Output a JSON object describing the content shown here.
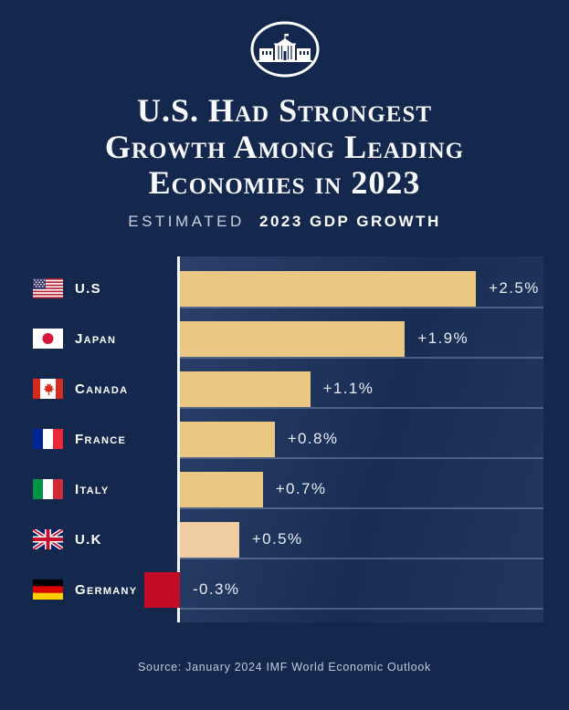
{
  "page": {
    "background": "#14284E"
  },
  "header": {
    "logo_icon": "white-house-logo-icon",
    "title_lines": [
      "U.S. Had Strongest",
      "Growth Among Leading",
      "Economies in 2023"
    ],
    "subtitle": {
      "light": "Estimated",
      "bold": "2023 GDP Growth"
    }
  },
  "chart_data": {
    "type": "bar",
    "orientation": "horizontal",
    "title": "U.S. Had Strongest Growth Among Leading Economies in 2023",
    "subtitle": "Estimated 2023 GDP Growth",
    "categories": [
      "U.S",
      "Japan",
      "Canada",
      "France",
      "Italy",
      "U.K",
      "Germany"
    ],
    "values": [
      2.5,
      1.9,
      1.1,
      0.8,
      0.7,
      0.5,
      -0.3
    ],
    "value_labels": [
      "+2.5%",
      "+1.9%",
      "+1.1%",
      "+0.8%",
      "+0.7%",
      "+0.5%",
      "-0.3%"
    ],
    "flag_icons": [
      "us-flag-icon",
      "japan-flag-icon",
      "canada-flag-icon",
      "france-flag-icon",
      "italy-flag-icon",
      "uk-flag-icon",
      "germany-flag-icon"
    ],
    "bar_colors": [
      "#EAC783",
      "#EAC783",
      "#EAC783",
      "#EAC783",
      "#EAC783",
      "#EFCDA0",
      "#C30B26"
    ],
    "xlim": [
      -0.45,
      3.07
    ],
    "grid": true,
    "legend": false,
    "axis_color": "#F4F6FA",
    "gridline_color": "rgba(188,205,233,0.30)"
  },
  "footer": {
    "source": "Source: January 2024 IMF World Economic Outlook"
  }
}
